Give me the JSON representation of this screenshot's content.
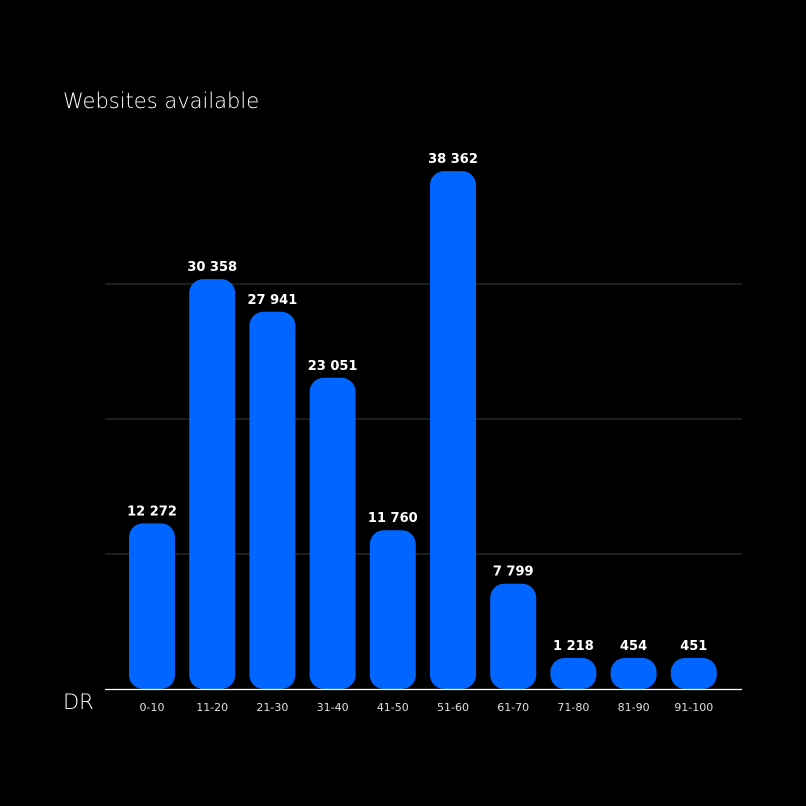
{
  "chart_data": {
    "type": "bar",
    "title": "Websites available",
    "xlabel": "DR",
    "ylabel": "",
    "categories": [
      "0-10",
      "11-20",
      "21-30",
      "31-40",
      "41-50",
      "51-60",
      "61-70",
      "71-80",
      "81-90",
      "91-100"
    ],
    "values": [
      12272,
      30358,
      27941,
      23051,
      11760,
      38362,
      7799,
      1218,
      454,
      451
    ],
    "value_labels": [
      "12 272",
      "30 358",
      "27 941",
      "23 051",
      "11 760",
      "38 362",
      "7 799",
      "1 218",
      "454",
      "451"
    ],
    "gridlines": [
      10000,
      20000,
      30000
    ],
    "grid": true,
    "ylim": [
      0,
      40000
    ],
    "bar_color": "#0066FF",
    "background": "#000000"
  }
}
